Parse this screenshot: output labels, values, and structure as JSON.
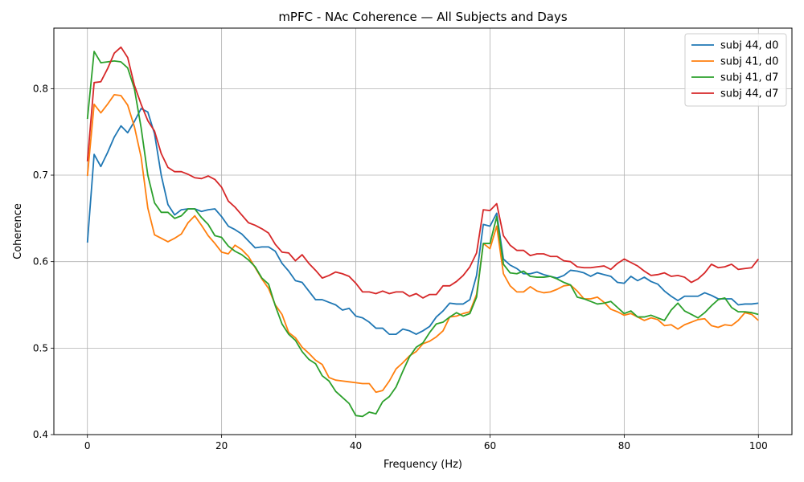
{
  "chart_data": {
    "type": "line",
    "title": "mPFC - NAc Coherence — All Subjects and Days",
    "xlabel": "Frequency (Hz)",
    "ylabel": "Coherence",
    "xlim": [
      -5,
      105
    ],
    "ylim": [
      0.4,
      0.87
    ],
    "xticks": [
      0,
      20,
      40,
      60,
      80,
      100
    ],
    "yticks": [
      0.4,
      0.5,
      0.6,
      0.7,
      0.8
    ],
    "grid": true,
    "legend_position": "top-right",
    "series": [
      {
        "name": "subj 44, d0",
        "color": "#1f77b4",
        "values": [
          0.622,
          0.724,
          0.71,
          0.726,
          0.744,
          0.757,
          0.749,
          0.762,
          0.777,
          0.773,
          0.748,
          0.7,
          0.666,
          0.654,
          0.66,
          0.661,
          0.661,
          0.658,
          0.66,
          0.661,
          0.652,
          0.641,
          0.637,
          0.632,
          0.624,
          0.616,
          0.617,
          0.617,
          0.612,
          0.598,
          0.589,
          0.578,
          0.576,
          0.566,
          0.556,
          0.556,
          0.553,
          0.55,
          0.544,
          0.546,
          0.537,
          0.535,
          0.53,
          0.523,
          0.523,
          0.516,
          0.516,
          0.522,
          0.52,
          0.516,
          0.52,
          0.525,
          0.536,
          0.543,
          0.552,
          0.551,
          0.551,
          0.556,
          0.584,
          0.643,
          0.641,
          0.656,
          0.603,
          0.596,
          0.592,
          0.586,
          0.586,
          0.588,
          0.585,
          0.583,
          0.581,
          0.584,
          0.59,
          0.589,
          0.587,
          0.583,
          0.587,
          0.585,
          0.583,
          0.576,
          0.575,
          0.583,
          0.578,
          0.582,
          0.577,
          0.574,
          0.566,
          0.56,
          0.555,
          0.56,
          0.56,
          0.56,
          0.564,
          0.561,
          0.557,
          0.557,
          0.557,
          0.55,
          0.551,
          0.551,
          0.552
        ]
      },
      {
        "name": "subj 41, d0",
        "color": "#ff7f0e",
        "values": [
          0.699,
          0.782,
          0.772,
          0.782,
          0.793,
          0.792,
          0.781,
          0.756,
          0.721,
          0.662,
          0.631,
          0.627,
          0.623,
          0.627,
          0.632,
          0.645,
          0.653,
          0.642,
          0.63,
          0.621,
          0.611,
          0.609,
          0.619,
          0.614,
          0.606,
          0.593,
          0.58,
          0.569,
          0.55,
          0.539,
          0.518,
          0.512,
          0.501,
          0.494,
          0.486,
          0.481,
          0.466,
          0.463,
          0.462,
          0.461,
          0.46,
          0.459,
          0.459,
          0.449,
          0.451,
          0.462,
          0.476,
          0.483,
          0.491,
          0.496,
          0.505,
          0.508,
          0.513,
          0.52,
          0.536,
          0.537,
          0.54,
          0.542,
          0.562,
          0.621,
          0.615,
          0.641,
          0.586,
          0.572,
          0.565,
          0.565,
          0.571,
          0.566,
          0.564,
          0.565,
          0.568,
          0.572,
          0.573,
          0.566,
          0.557,
          0.557,
          0.559,
          0.553,
          0.545,
          0.542,
          0.538,
          0.54,
          0.536,
          0.532,
          0.535,
          0.533,
          0.526,
          0.527,
          0.522,
          0.527,
          0.53,
          0.533,
          0.534,
          0.526,
          0.524,
          0.527,
          0.526,
          0.532,
          0.541,
          0.539,
          0.532
        ]
      },
      {
        "name": "subj 41, d7",
        "color": "#2ca02c",
        "values": [
          0.765,
          0.843,
          0.83,
          0.831,
          0.832,
          0.831,
          0.824,
          0.8,
          0.755,
          0.7,
          0.668,
          0.657,
          0.657,
          0.65,
          0.653,
          0.661,
          0.661,
          0.651,
          0.643,
          0.63,
          0.628,
          0.618,
          0.612,
          0.608,
          0.602,
          0.594,
          0.581,
          0.574,
          0.549,
          0.528,
          0.516,
          0.509,
          0.496,
          0.487,
          0.482,
          0.468,
          0.462,
          0.45,
          0.443,
          0.436,
          0.422,
          0.421,
          0.426,
          0.424,
          0.438,
          0.444,
          0.455,
          0.473,
          0.49,
          0.501,
          0.506,
          0.518,
          0.528,
          0.53,
          0.536,
          0.541,
          0.537,
          0.54,
          0.559,
          0.621,
          0.621,
          0.652,
          0.597,
          0.587,
          0.586,
          0.589,
          0.583,
          0.582,
          0.582,
          0.583,
          0.58,
          0.576,
          0.573,
          0.559,
          0.557,
          0.554,
          0.551,
          0.552,
          0.554,
          0.547,
          0.54,
          0.543,
          0.536,
          0.536,
          0.538,
          0.535,
          0.532,
          0.544,
          0.552,
          0.543,
          0.539,
          0.535,
          0.541,
          0.549,
          0.556,
          0.558,
          0.547,
          0.542,
          0.542,
          0.541,
          0.539
        ]
      },
      {
        "name": "subj 44, d7",
        "color": "#d62728",
        "values": [
          0.716,
          0.807,
          0.808,
          0.823,
          0.841,
          0.848,
          0.836,
          0.804,
          0.782,
          0.763,
          0.751,
          0.725,
          0.709,
          0.704,
          0.704,
          0.701,
          0.697,
          0.696,
          0.699,
          0.695,
          0.686,
          0.67,
          0.663,
          0.654,
          0.645,
          0.642,
          0.638,
          0.633,
          0.62,
          0.611,
          0.61,
          0.601,
          0.608,
          0.598,
          0.59,
          0.581,
          0.584,
          0.588,
          0.586,
          0.583,
          0.575,
          0.565,
          0.565,
          0.563,
          0.566,
          0.563,
          0.565,
          0.565,
          0.56,
          0.563,
          0.558,
          0.562,
          0.562,
          0.572,
          0.572,
          0.577,
          0.584,
          0.594,
          0.61,
          0.66,
          0.659,
          0.667,
          0.63,
          0.619,
          0.613,
          0.613,
          0.607,
          0.609,
          0.609,
          0.606,
          0.606,
          0.601,
          0.6,
          0.594,
          0.593,
          0.593,
          0.594,
          0.595,
          0.591,
          0.598,
          0.603,
          0.599,
          0.595,
          0.589,
          0.584,
          0.585,
          0.587,
          0.583,
          0.584,
          0.582,
          0.576,
          0.58,
          0.587,
          0.597,
          0.593,
          0.594,
          0.597,
          0.591,
          0.592,
          0.593,
          0.603
        ]
      }
    ]
  }
}
